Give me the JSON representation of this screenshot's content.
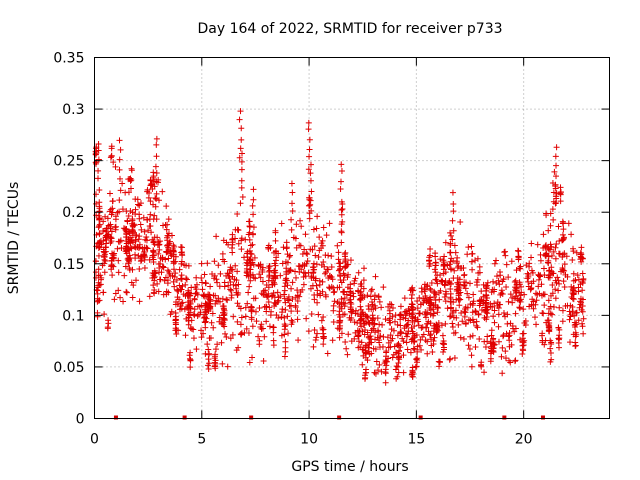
{
  "chart_data": {
    "type": "scatter",
    "title": "Day 164 of 2022, SRMTID for receiver p733",
    "xlabel": "GPS time / hours",
    "ylabel": "SRMTID / TECUs",
    "xlim": [
      0,
      24
    ],
    "ylim": [
      0,
      0.35
    ],
    "x_ticks": [
      0,
      5,
      10,
      15,
      20
    ],
    "x_tick_labels": [
      "0",
      "5",
      "10",
      "15",
      "20"
    ],
    "y_ticks": [
      0,
      0.05,
      0.1,
      0.15,
      0.2,
      0.25,
      0.3,
      0.35
    ],
    "y_tick_labels": [
      "0",
      "0.05",
      "0.1",
      "0.15",
      "0.2",
      "0.25",
      "0.3",
      "0.35"
    ],
    "grid": true,
    "marker": "+",
    "series_color": "#e00000",
    "x_data_range": [
      0,
      22.8
    ],
    "envelope": [
      {
        "x": 0.0,
        "lo": 0.07,
        "hi": 0.27
      },
      {
        "x": 1.0,
        "lo": 0.09,
        "hi": 0.25
      },
      {
        "x": 2.0,
        "lo": 0.11,
        "hi": 0.24
      },
      {
        "x": 3.0,
        "lo": 0.1,
        "hi": 0.26
      },
      {
        "x": 4.0,
        "lo": 0.07,
        "hi": 0.17
      },
      {
        "x": 5.0,
        "lo": 0.04,
        "hi": 0.16
      },
      {
        "x": 6.0,
        "lo": 0.05,
        "hi": 0.21
      },
      {
        "x": 7.0,
        "lo": 0.04,
        "hi": 0.22
      },
      {
        "x": 8.0,
        "lo": 0.06,
        "hi": 0.18
      },
      {
        "x": 9.0,
        "lo": 0.05,
        "hi": 0.2
      },
      {
        "x": 10.0,
        "lo": 0.06,
        "hi": 0.24
      },
      {
        "x": 11.0,
        "lo": 0.06,
        "hi": 0.2
      },
      {
        "x": 12.0,
        "lo": 0.05,
        "hi": 0.17
      },
      {
        "x": 13.0,
        "lo": 0.04,
        "hi": 0.14
      },
      {
        "x": 14.0,
        "lo": 0.03,
        "hi": 0.12
      },
      {
        "x": 15.0,
        "lo": 0.04,
        "hi": 0.14
      },
      {
        "x": 16.0,
        "lo": 0.05,
        "hi": 0.17
      },
      {
        "x": 17.0,
        "lo": 0.04,
        "hi": 0.2
      },
      {
        "x": 18.0,
        "lo": 0.05,
        "hi": 0.16
      },
      {
        "x": 19.0,
        "lo": 0.04,
        "hi": 0.18
      },
      {
        "x": 20.0,
        "lo": 0.05,
        "hi": 0.16
      },
      {
        "x": 21.0,
        "lo": 0.07,
        "hi": 0.22
      },
      {
        "x": 22.0,
        "lo": 0.07,
        "hi": 0.21
      },
      {
        "x": 22.8,
        "lo": 0.06,
        "hi": 0.17
      }
    ],
    "spikes": [
      {
        "x": 0.2,
        "y": 0.27
      },
      {
        "x": 1.2,
        "y": 0.27
      },
      {
        "x": 2.9,
        "y": 0.275
      },
      {
        "x": 6.8,
        "y": 0.3
      },
      {
        "x": 6.9,
        "y": 0.26
      },
      {
        "x": 10.0,
        "y": 0.29
      },
      {
        "x": 10.1,
        "y": 0.25
      },
      {
        "x": 11.5,
        "y": 0.25
      },
      {
        "x": 16.7,
        "y": 0.22
      },
      {
        "x": 21.5,
        "y": 0.265
      },
      {
        "x": 21.4,
        "y": 0.24
      },
      {
        "x": 7.4,
        "y": 0.225
      },
      {
        "x": 9.2,
        "y": 0.23
      }
    ],
    "rug_x": [
      1.0,
      4.2,
      7.3,
      11.4,
      15.2,
      19.1,
      20.9
    ]
  }
}
